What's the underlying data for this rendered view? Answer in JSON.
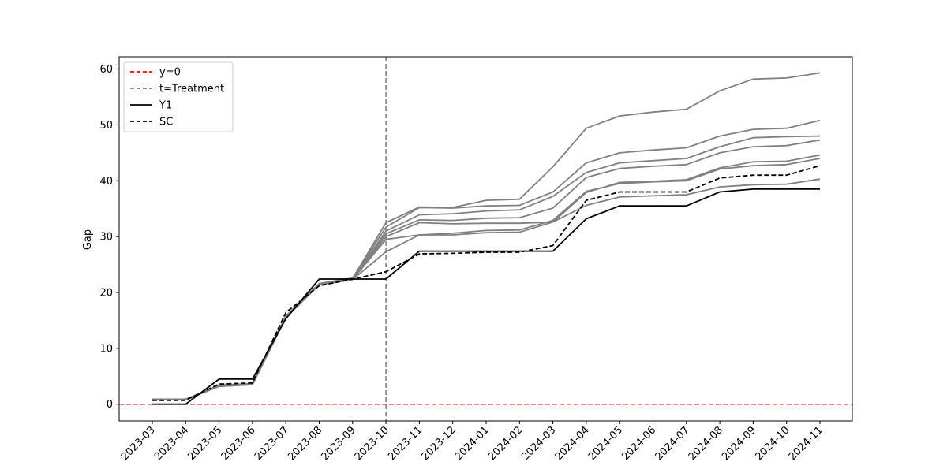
{
  "chart_data": {
    "type": "line",
    "title": "",
    "xlabel": "",
    "ylabel": "Gap",
    "ylim": [
      -3,
      62.2
    ],
    "yticks": [
      0,
      10,
      20,
      30,
      40,
      50,
      60
    ],
    "grid": false,
    "legend_position": "top-left",
    "treatment_x": "2023-10",
    "categories": [
      "2023-03",
      "2023-04",
      "2023-05",
      "2023-06",
      "2023-07",
      "2023-08",
      "2023-09",
      "2023-10",
      "2023-11",
      "2023-12",
      "2024-01",
      "2024-02",
      "2024-03",
      "2024-04",
      "2024-05",
      "2024-06",
      "2024-07",
      "2024-08",
      "2024-09",
      "2024-10",
      "2024-11"
    ],
    "legend": [
      {
        "label": "y=0",
        "color": "#ff0000",
        "style": "dashed"
      },
      {
        "label": "t=Treatment",
        "color": "#808080",
        "style": "dashed"
      },
      {
        "label": "Y1",
        "color": "#000000",
        "style": "solid"
      },
      {
        "label": "SC",
        "color": "#000000",
        "style": "dashed"
      }
    ],
    "placebo_series": [
      {
        "values": [
          0.9,
          0.9,
          3.3,
          3.6,
          15.6,
          21.5,
          22.5,
          32.5,
          35.3,
          35.2,
          36.5,
          36.7,
          42.5,
          49.4,
          51.6,
          52.3,
          52.8,
          56.1,
          58.2,
          58.4,
          59.3
        ]
      },
      {
        "values": [
          0.9,
          0.9,
          3.4,
          3.7,
          15.8,
          21.6,
          22.6,
          31.7,
          35.2,
          35.1,
          35.5,
          35.6,
          38.0,
          43.2,
          45.0,
          45.5,
          45.9,
          48.0,
          49.2,
          49.4,
          50.8
        ]
      },
      {
        "values": [
          0.8,
          0.8,
          3.3,
          3.6,
          15.7,
          21.5,
          22.4,
          31.0,
          33.9,
          34.1,
          34.6,
          34.8,
          37.2,
          41.5,
          43.2,
          43.6,
          44.0,
          46.1,
          47.7,
          47.9,
          48.0
        ]
      },
      {
        "values": [
          0.8,
          0.8,
          3.3,
          3.6,
          15.7,
          21.5,
          22.5,
          30.5,
          33.0,
          32.9,
          33.3,
          33.4,
          35.1,
          40.6,
          42.2,
          42.6,
          42.9,
          45.0,
          46.1,
          46.3,
          47.3
        ]
      },
      {
        "values": [
          0.8,
          0.8,
          3.2,
          3.5,
          15.5,
          21.4,
          22.4,
          30.0,
          32.5,
          32.3,
          32.4,
          32.4,
          32.6,
          37.9,
          39.7,
          39.9,
          40.2,
          42.3,
          43.4,
          43.5,
          44.6
        ]
      },
      {
        "values": [
          0.8,
          0.8,
          3.2,
          3.5,
          15.5,
          21.4,
          22.3,
          29.5,
          30.3,
          30.6,
          31.1,
          31.2,
          32.9,
          38.1,
          39.5,
          39.8,
          40.0,
          42.1,
          42.7,
          42.9,
          44.0
        ]
      },
      {
        "values": [
          0.8,
          0.8,
          3.2,
          3.5,
          15.5,
          21.4,
          22.3,
          27.3,
          30.3,
          30.3,
          30.7,
          30.8,
          32.6,
          35.6,
          37.1,
          37.3,
          37.5,
          38.9,
          39.3,
          39.4,
          40.3
        ]
      }
    ],
    "series": [
      {
        "name": "Y1",
        "values": [
          0,
          0,
          4.5,
          4.5,
          15.3,
          22.4,
          22.4,
          22.4,
          27.4,
          27.4,
          27.4,
          27.4,
          27.4,
          33.2,
          35.5,
          35.5,
          35.5,
          38.0,
          38.5,
          38.5,
          38.5
        ]
      },
      {
        "name": "SC",
        "values": [
          0.7,
          0.7,
          3.6,
          3.8,
          16.4,
          21.2,
          22.4,
          23.7,
          26.9,
          27.0,
          27.2,
          27.2,
          28.4,
          36.5,
          38.0,
          38.0,
          38.0,
          40.5,
          41.0,
          41.0,
          42.7
        ]
      }
    ]
  }
}
